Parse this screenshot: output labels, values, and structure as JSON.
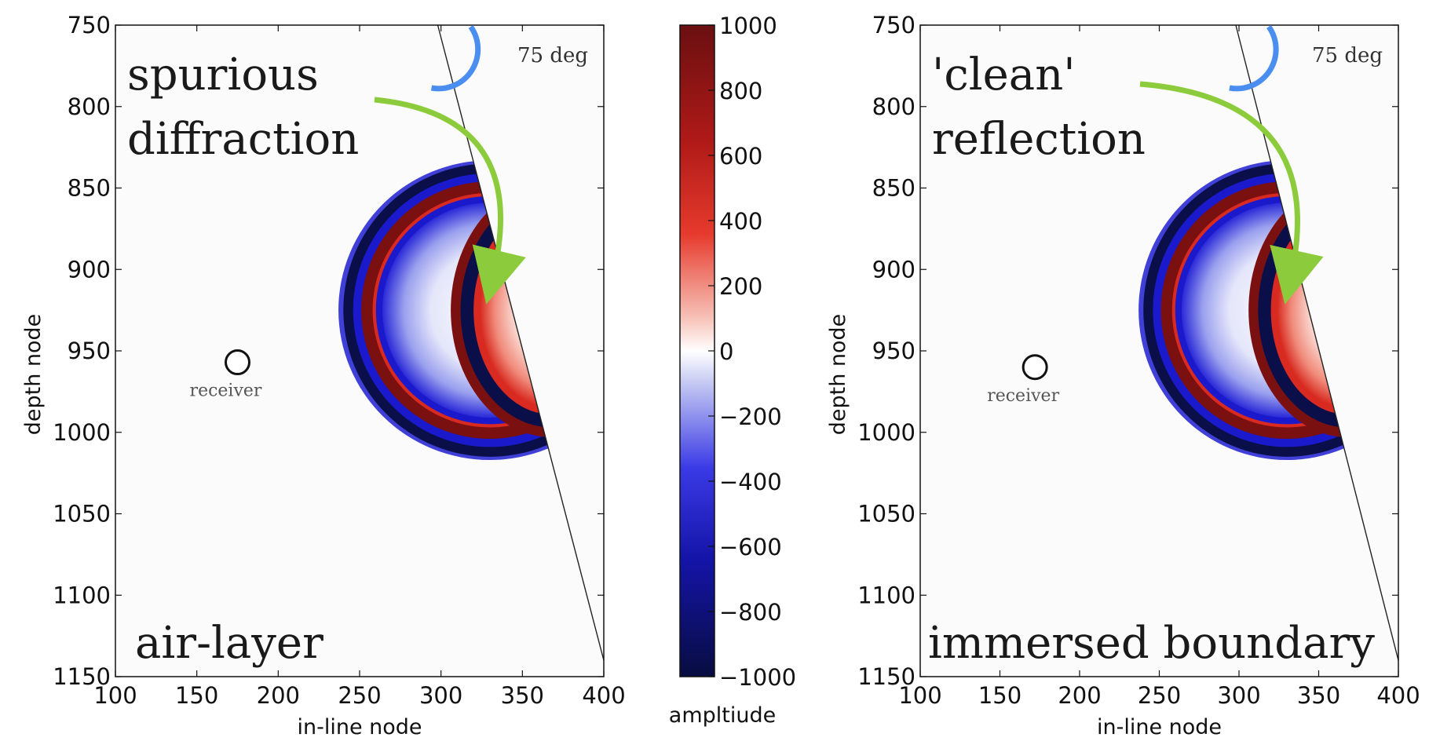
{
  "colors": {
    "deep_blue": "#0a0f4a",
    "blue": "#1a1acc",
    "light_blue": "#c8ccf4",
    "deep_red": "#7a1010",
    "red": "#e0302a",
    "light_red": "#f7c4bc",
    "white": "#ffffff",
    "green_arrow": "#8ccc3c",
    "angle_arc": "#4a8ef0"
  },
  "chart_data": [
    {
      "type": "heatmap",
      "title": "",
      "xlabel": "in-line node",
      "ylabel": "depth node",
      "xlim": [
        100,
        400
      ],
      "ylim": [
        1150,
        750
      ],
      "xticks": [
        "100",
        "150",
        "200",
        "250",
        "300",
        "350",
        "400"
      ],
      "yticks": [
        "750",
        "800",
        "850",
        "900",
        "950",
        "1000",
        "1050",
        "1100",
        "1150"
      ],
      "annotations": {
        "top": [
          "spurious",
          "diffraction"
        ],
        "bottom": "air-layer",
        "angle": "75 deg",
        "receiver": "receiver"
      },
      "receiver_point": {
        "x": 175,
        "y": 957
      },
      "boundary_line": {
        "x1": 298,
        "y1": 750,
        "x2": 400,
        "y2": 1140
      },
      "wavefront_center": {
        "x": 330,
        "y": 925
      },
      "simulated_boundary": "air-layer"
    },
    {
      "type": "heatmap",
      "title": "",
      "xlabel": "in-line node",
      "ylabel": "depth node",
      "xlim": [
        100,
        400
      ],
      "ylim": [
        1150,
        750
      ],
      "xticks": [
        "100",
        "150",
        "200",
        "250",
        "300",
        "350",
        "400"
      ],
      "yticks": [
        "750",
        "800",
        "850",
        "900",
        "950",
        "1000",
        "1050",
        "1100",
        "1150"
      ],
      "annotations": {
        "top": [
          "'clean'",
          "reflection"
        ],
        "bottom": "immersed boundary",
        "angle": "75 deg",
        "receiver": "receiver"
      },
      "receiver_point": {
        "x": 172,
        "y": 960
      },
      "boundary_line": {
        "x1": 298,
        "y1": 750,
        "x2": 400,
        "y2": 1140
      },
      "wavefront_center": {
        "x": 330,
        "y": 925
      },
      "simulated_boundary": "immersed boundary"
    }
  ],
  "colorbar": {
    "label": "ampltiude",
    "min": -1000,
    "max": 1000,
    "ticks": [
      "1000",
      "800",
      "600",
      "400",
      "200",
      "0",
      "−200",
      "−400",
      "−600",
      "−800",
      "−1000"
    ]
  }
}
